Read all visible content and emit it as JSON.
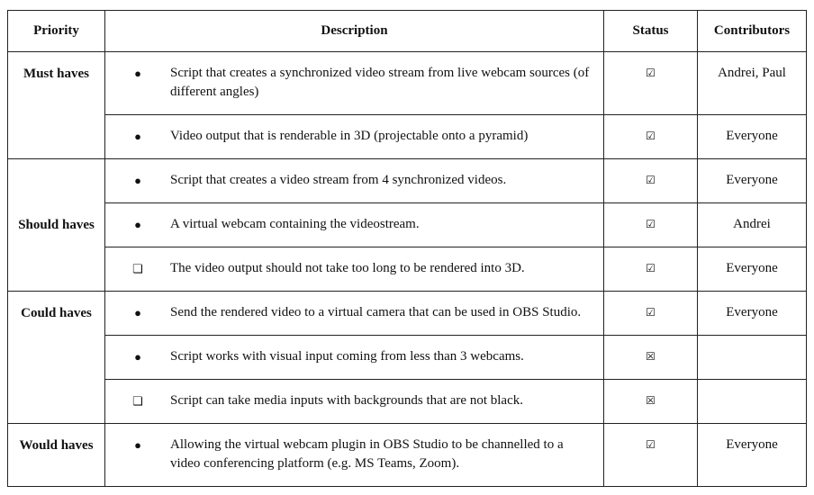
{
  "headers": {
    "priority": "Priority",
    "description": "Description",
    "status": "Status",
    "contributors": "Contributors"
  },
  "groups": [
    {
      "priority": "Must haves",
      "rows": [
        {
          "bullet": "●",
          "bullet_icon": "filled-bullet",
          "description": "Script that creates a synchronized video stream from live webcam sources (of different angles)",
          "status": "☑",
          "status_icon": "checked-box",
          "contributors": "Andrei, Paul"
        },
        {
          "bullet": "●",
          "bullet_icon": "filled-bullet",
          "description": "Video output that is renderable in 3D (projectable onto a pyramid)",
          "status": "☑",
          "status_icon": "checked-box",
          "contributors": "Everyone"
        }
      ]
    },
    {
      "priority": "Should haves",
      "rows": [
        {
          "bullet": "●",
          "bullet_icon": "filled-bullet",
          "description": "Script that creates a video stream from 4 synchronized videos.",
          "status": "☑",
          "status_icon": "checked-box",
          "contributors": "Everyone"
        },
        {
          "bullet": "●",
          "bullet_icon": "filled-bullet",
          "description": "A virtual webcam containing the videostream.",
          "status": "☑",
          "status_icon": "checked-box",
          "contributors": "Andrei"
        },
        {
          "bullet": "❏",
          "bullet_icon": "box-bullet",
          "description": "The video output should not take too long to be rendered into 3D.",
          "status": "☑",
          "status_icon": "checked-box",
          "contributors": "Everyone"
        }
      ]
    },
    {
      "priority": "Could haves",
      "rows": [
        {
          "bullet": "●",
          "bullet_icon": "filled-bullet",
          "description": "Send the rendered video to a virtual camera that can be used in OBS Studio.",
          "status": "☑",
          "status_icon": "checked-box",
          "contributors": "Everyone"
        },
        {
          "bullet": "●",
          "bullet_icon": "filled-bullet",
          "description": "Script works with visual input coming from less than 3 webcams.",
          "status": "☒",
          "status_icon": "crossed-box",
          "contributors": ""
        },
        {
          "bullet": "❏",
          "bullet_icon": "box-bullet",
          "description": "Script can take media inputs with backgrounds that are not black.",
          "status": "☒",
          "status_icon": "crossed-box",
          "contributors": ""
        }
      ]
    },
    {
      "priority": "Would haves",
      "rows": [
        {
          "bullet": "●",
          "bullet_icon": "filled-bullet",
          "description": "Allowing the virtual webcam plugin in OBS Studio to be channelled to a video conferencing platform (e.g. MS Teams, Zoom).",
          "status": "☑",
          "status_icon": "checked-box",
          "contributors": "Everyone"
        }
      ]
    }
  ]
}
